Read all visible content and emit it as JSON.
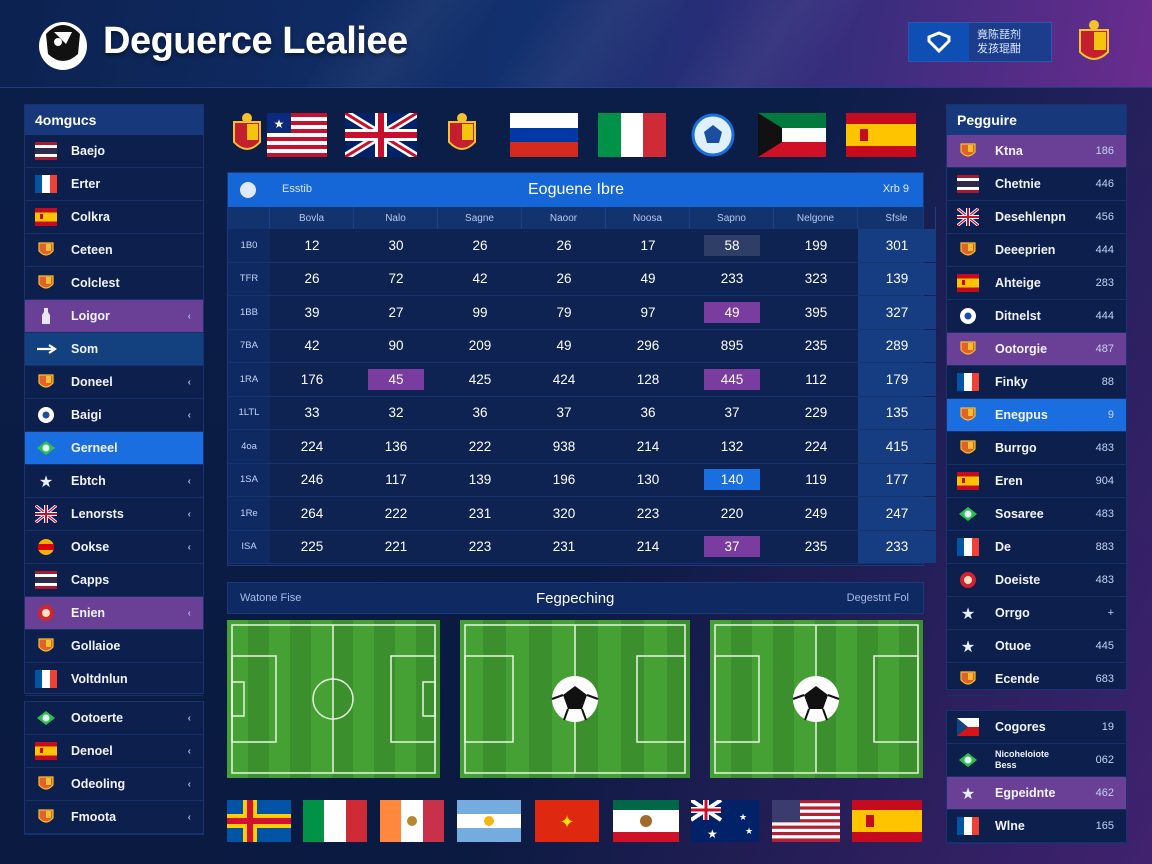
{
  "header": {
    "title": "Deguerce Lealiee",
    "lang_line1": "竟陈琵剂",
    "lang_line2": "发孩琨酣"
  },
  "left_sidebar": {
    "title": "4omgucs",
    "items": [
      {
        "label": "Baejo",
        "icon": "flag-thai"
      },
      {
        "label": "Erter",
        "icon": "flag-france"
      },
      {
        "label": "Colkra",
        "icon": "flag-spain"
      },
      {
        "label": "Ceteen",
        "icon": "crest-icon"
      },
      {
        "label": "Colclest",
        "icon": "crest-icon"
      },
      {
        "label": "Loigor",
        "icon": "bottle-icon",
        "chev": "‹"
      },
      {
        "label": "Som",
        "icon": "arrow-icon"
      },
      {
        "label": "Doneel",
        "icon": "crest-icon",
        "chev": "‹"
      },
      {
        "label": "Baigi",
        "icon": "ball-icon",
        "chev": "‹"
      },
      {
        "label": "Gerneel",
        "icon": "flag-brazil"
      },
      {
        "label": "Ebtch",
        "icon": "star-icon",
        "chev": "‹"
      },
      {
        "label": "Lenorsts",
        "icon": "flag-uk",
        "chev": "‹"
      },
      {
        "label": "Ookse",
        "icon": "flag-germany",
        "chev": "‹"
      },
      {
        "label": "Capps",
        "icon": "flag-thai"
      },
      {
        "label": "Enien",
        "icon": "badge-icon",
        "chev": "‹"
      },
      {
        "label": "Gollaioe",
        "icon": "crest-icon"
      },
      {
        "label": "Voltdnlun",
        "icon": "flag-france"
      }
    ],
    "items2": [
      {
        "label": "Ootoerte",
        "icon": "flag-brazil",
        "chev": "‹"
      },
      {
        "label": "Denoel",
        "icon": "flag-spain",
        "chev": "‹"
      },
      {
        "label": "Odeoling",
        "icon": "crest-icon",
        "chev": "‹"
      },
      {
        "label": "Fmoota",
        "icon": "crest-icon",
        "chev": "‹"
      }
    ]
  },
  "table": {
    "left_label": "Esstib",
    "title": "Eoguene Ibre",
    "right_label": "Xrb 9",
    "columns": [
      "",
      "Bovla",
      "Nalo",
      "Sagne",
      "Naoor",
      "Noosa",
      "Sapno",
      "Nelgone",
      "Sfsle"
    ],
    "rows": [
      {
        "label": "1B0",
        "cells": [
          "12",
          "30",
          "26",
          "26",
          "17",
          "58",
          "199",
          "301"
        ]
      },
      {
        "label": "TFR",
        "cells": [
          "26",
          "72",
          "42",
          "26",
          "49",
          "233",
          "323",
          "139"
        ]
      },
      {
        "label": "1BB",
        "cells": [
          "39",
          "27",
          "99",
          "79",
          "97",
          "49",
          "395",
          "327"
        ]
      },
      {
        "label": "7BA",
        "cells": [
          "42",
          "90",
          "209",
          "49",
          "296",
          "895",
          "235",
          "289"
        ]
      },
      {
        "label": "1RA",
        "cells": [
          "176",
          "45",
          "425",
          "424",
          "128",
          "445",
          "112",
          "179"
        ]
      },
      {
        "label": "1LTL",
        "cells": [
          "33",
          "32",
          "36",
          "37",
          "36",
          "37",
          "229",
          "135"
        ]
      },
      {
        "label": "4oa",
        "cells": [
          "224",
          "136",
          "222",
          "938",
          "214",
          "132",
          "224",
          "415"
        ]
      },
      {
        "label": "1SA",
        "cells": [
          "246",
          "117",
          "139",
          "196",
          "130",
          "140",
          "119",
          "177"
        ]
      },
      {
        "label": "1Re",
        "cells": [
          "264",
          "222",
          "231",
          "320",
          "223",
          "220",
          "249",
          "247"
        ]
      },
      {
        "label": "ISA",
        "cells": [
          "225",
          "221",
          "223",
          "231",
          "214",
          "37",
          "235",
          "233"
        ]
      }
    ]
  },
  "pitch_bar": {
    "left": "Watone Fise",
    "center": "Fegpeching",
    "right": "Degestnt Fol"
  },
  "right_sidebar": {
    "title": "Pegguire",
    "items": [
      {
        "label": "Ktna",
        "val": "186",
        "icon": "crest-icon"
      },
      {
        "label": "Chetnie",
        "val": "446",
        "icon": "flag-thai"
      },
      {
        "label": "Desehlenpn",
        "val": "456",
        "icon": "flag-uk"
      },
      {
        "label": "Deeeprien",
        "val": "444",
        "icon": "crest-icon"
      },
      {
        "label": "Ahteige",
        "val": "283",
        "icon": "flag-spain"
      },
      {
        "label": "Ditnelst",
        "val": "444",
        "icon": "ball-icon"
      },
      {
        "label": "Ootorgie",
        "val": "487",
        "icon": "crest-icon"
      },
      {
        "label": "Finky",
        "val": "88",
        "icon": "flag-france"
      },
      {
        "label": "Enegpus",
        "val": "9",
        "icon": "crest-icon"
      },
      {
        "label": "Burrgo",
        "val": "483",
        "icon": "crest-icon"
      },
      {
        "label": "Eren",
        "val": "904",
        "icon": "flag-spain"
      },
      {
        "label": "Sosaree",
        "val": "483",
        "icon": "flag-brazil"
      },
      {
        "label": "De",
        "val": "883",
        "icon": "flag-france"
      },
      {
        "label": "Doeiste",
        "val": "483",
        "icon": "badge-icon"
      },
      {
        "label": "Orrgo",
        "val": "+",
        "icon": "star-icon"
      },
      {
        "label": "Otuoe",
        "val": "445",
        "icon": "star-icon"
      },
      {
        "label": "Ecende",
        "val": "683",
        "icon": "crest-icon"
      }
    ],
    "items2": [
      {
        "label": "Cogores",
        "val": "19",
        "icon": "flag-czech"
      },
      {
        "label": "Nicoheloiote\nBess",
        "val": "062",
        "icon": "flag-brazil"
      },
      {
        "label": "Egpeidnte",
        "val": "462",
        "icon": "star-icon"
      },
      {
        "label": "Wlne",
        "val": "165",
        "icon": "flag-france"
      }
    ]
  },
  "colors": {
    "accent_blue": "#1a6ee0",
    "accent_purple": "#6a3f96",
    "panel": "#0d1f4c"
  }
}
